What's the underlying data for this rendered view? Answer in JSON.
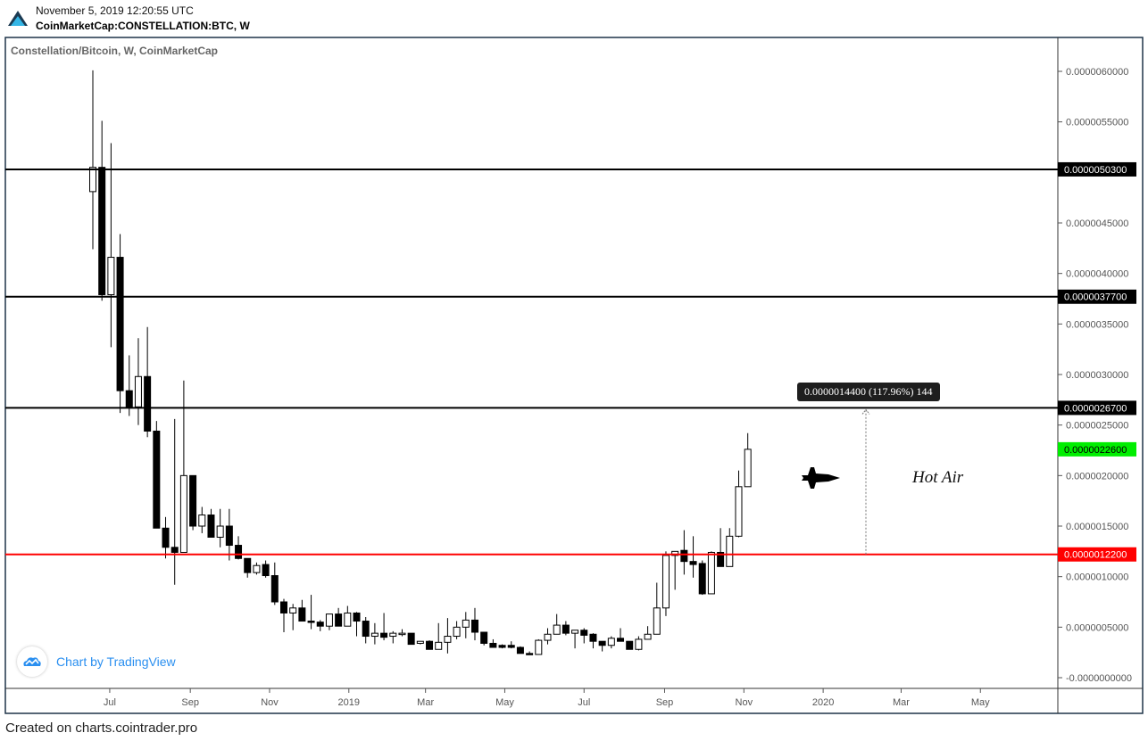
{
  "header": {
    "date": "November 5, 2019 12:20:55 UTC",
    "symbol": "CoinMarketCap:CONSTELLATION:BTC, W"
  },
  "footer": "Created on charts.cointrader.pro",
  "branding": {
    "label": "Chart by TradingView",
    "icon": "tradingview-cloud-icon",
    "color": "#2a8ff0"
  },
  "chart_data": {
    "type": "candlestick",
    "title": "Constellation/Bitcoin, W, CoinMarketCap",
    "interval": "W",
    "y_ticks": [
      "-0.0000000000",
      "0.0000005000",
      "0.0000010000",
      "0.0000015000",
      "0.0000020000",
      "0.0000025000",
      "0.0000030000",
      "0.0000035000",
      "0.0000040000",
      "0.0000045000",
      "0.0000055000",
      "0.0000060000"
    ],
    "y_tick_values": [
      0,
      5e-07,
      1e-06,
      1.5e-06,
      2e-06,
      2.5e-06,
      3e-06,
      3.5e-06,
      4e-06,
      4.5e-06,
      5.5e-06,
      6e-06
    ],
    "x_ticks": [
      {
        "label": "Jul",
        "date": "2018-07-01"
      },
      {
        "label": "Sep",
        "date": "2018-09-01"
      },
      {
        "label": "Nov",
        "date": "2018-11-01"
      },
      {
        "label": "2019",
        "date": "2019-01-01"
      },
      {
        "label": "Mar",
        "date": "2019-03-01"
      },
      {
        "label": "May",
        "date": "2019-05-01"
      },
      {
        "label": "Jul",
        "date": "2019-07-01"
      },
      {
        "label": "Sep",
        "date": "2019-09-01"
      },
      {
        "label": "Nov",
        "date": "2019-11-01"
      },
      {
        "label": "2020",
        "date": "2020-01-01"
      },
      {
        "label": "Mar",
        "date": "2020-03-01"
      },
      {
        "label": "May",
        "date": "2020-05-01"
      }
    ],
    "ylim": [
      -1e-07,
      6.4e-06
    ],
    "xlim": [
      "2016-04-15",
      "2020-07-15"
    ],
    "grid": false,
    "colors": {
      "up_fill": "#ffffff",
      "down_fill": "#000000",
      "wick": "#000000"
    },
    "candles_fields": [
      "date",
      "open",
      "high",
      "low",
      "close"
    ],
    "candles": [
      [
        "2018-06-18",
        4.81e-06,
        6.01e-06,
        4.24e-06,
        5.05e-06
      ],
      [
        "2018-06-25",
        5.05e-06,
        5.51e-06,
        3.73e-06,
        3.79e-06
      ],
      [
        "2018-07-02",
        3.79e-06,
        5.29e-06,
        3.27e-06,
        4.16e-06
      ],
      [
        "2018-07-09",
        4.16e-06,
        4.39e-06,
        2.62e-06,
        2.84e-06
      ],
      [
        "2018-07-16",
        2.84e-06,
        3.19e-06,
        2.59e-06,
        2.68e-06
      ],
      [
        "2018-07-23",
        2.68e-06,
        3.36e-06,
        2.5e-06,
        2.98e-06
      ],
      [
        "2018-07-30",
        2.98e-06,
        3.47e-06,
        2.38e-06,
        2.44e-06
      ],
      [
        "2018-08-06",
        2.44e-06,
        2.54e-06,
        1.48e-06,
        1.48e-06
      ],
      [
        "2018-08-13",
        1.48e-06,
        1.59e-06,
        1.18e-06,
        1.29e-06
      ],
      [
        "2018-08-20",
        1.29e-06,
        2.56e-06,
        9.2e-07,
        1.24e-06
      ],
      [
        "2018-08-27",
        1.24e-06,
        2.94e-06,
        1.24e-06,
        2e-06
      ],
      [
        "2018-09-03",
        2e-06,
        2e-06,
        1.46e-06,
        1.5e-06
      ],
      [
        "2018-09-10",
        1.5e-06,
        1.69e-06,
        1.43e-06,
        1.61e-06
      ],
      [
        "2018-09-17",
        1.61e-06,
        1.67e-06,
        1.39e-06,
        1.39e-06
      ],
      [
        "2018-09-24",
        1.39e-06,
        1.67e-06,
        1.29e-06,
        1.5e-06
      ],
      [
        "2018-10-01",
        1.5e-06,
        1.67e-06,
        1.16e-06,
        1.31e-06
      ],
      [
        "2018-10-08",
        1.31e-06,
        1.4e-06,
        1.17e-06,
        1.18e-06
      ],
      [
        "2018-10-15",
        1.18e-06,
        1.18e-06,
        9.9e-07,
        1.04e-06
      ],
      [
        "2018-10-22",
        1.04e-06,
        1.14e-06,
        1.02e-06,
        1.11e-06
      ],
      [
        "2018-10-29",
        1.12e-06,
        1.16e-06,
        9.9e-07,
        1.01e-06
      ],
      [
        "2018-11-05",
        1.01e-06,
        1.14e-06,
        7.2e-07,
        7.5e-07
      ],
      [
        "2018-11-12",
        7.5e-07,
        7.8e-07,
        4.5e-07,
        6.4e-07
      ],
      [
        "2018-11-19",
        6.4e-07,
        7.3e-07,
        4.7e-07,
        6.9e-07
      ],
      [
        "2018-11-26",
        6.9e-07,
        7.7e-07,
        5.6e-07,
        5.6e-07
      ],
      [
        "2018-12-03",
        5.6e-07,
        8.2e-07,
        4.8e-07,
        5.5e-07
      ],
      [
        "2018-12-10",
        5.5e-07,
        5.7e-07,
        4.6e-07,
        5.1e-07
      ],
      [
        "2018-12-17",
        5.1e-07,
        6.3e-07,
        4.7e-07,
        6.3e-07
      ],
      [
        "2018-12-24",
        6.3e-07,
        6.9e-07,
        5.1e-07,
        5.1e-07
      ],
      [
        "2018-12-31",
        5.1e-07,
        7.1e-07,
        5.1e-07,
        6.4e-07
      ],
      [
        "2019-01-07",
        6.4e-07,
        6.5e-07,
        4.1e-07,
        5.6e-07
      ],
      [
        "2019-01-14",
        5.6e-07,
        6e-07,
        3.4e-07,
        4.1e-07
      ],
      [
        "2019-01-21",
        4.1e-07,
        5.4e-07,
        3.3e-07,
        4.4e-07
      ],
      [
        "2019-01-28",
        4.4e-07,
        6.4e-07,
        3.7e-07,
        4e-07
      ],
      [
        "2019-02-04",
        4.1e-07,
        4.6e-07,
        3.4e-07,
        4.4e-07
      ],
      [
        "2019-02-11",
        4.4e-07,
        4.8e-07,
        4.1e-07,
        4.4e-07
      ],
      [
        "2019-02-18",
        4.4e-07,
        4.4e-07,
        3.3e-07,
        3.3e-07
      ],
      [
        "2019-02-25",
        3.4e-07,
        3.6e-07,
        3.3e-07,
        3.6e-07
      ],
      [
        "2019-03-04",
        3.6e-07,
        3.7e-07,
        2.8e-07,
        2.8e-07
      ],
      [
        "2019-03-11",
        2.8e-07,
        5.4e-07,
        2.8e-07,
        3.5e-07
      ],
      [
        "2019-03-18",
        3.5e-07,
        5.9e-07,
        2.4e-07,
        4.1e-07
      ],
      [
        "2019-03-25",
        4.1e-07,
        5.6e-07,
        3.8e-07,
        5e-07
      ],
      [
        "2019-04-01",
        5e-07,
        6.5e-07,
        3.9e-07,
        5.7e-07
      ],
      [
        "2019-04-08",
        5.7e-07,
        6.9e-07,
        3.7e-07,
        4.5e-07
      ],
      [
        "2019-04-15",
        4.5e-07,
        4.5e-07,
        3.2e-07,
        3.4e-07
      ],
      [
        "2019-04-22",
        3.4e-07,
        3.8e-07,
        3e-07,
        3e-07
      ],
      [
        "2019-04-29",
        3.2e-07,
        3.3e-07,
        2.9e-07,
        3e-07
      ],
      [
        "2019-05-06",
        3.2e-07,
        3.6e-07,
        2.9e-07,
        3e-07
      ],
      [
        "2019-05-13",
        3e-07,
        3.1e-07,
        2.4e-07,
        2.4e-07
      ],
      [
        "2019-05-20",
        2.4e-07,
        2.6e-07,
        2.3e-07,
        2.3e-07
      ],
      [
        "2019-05-27",
        2.3e-07,
        3.8e-07,
        2.3e-07,
        3.7e-07
      ],
      [
        "2019-06-03",
        3.7e-07,
        4.9e-07,
        3.3e-07,
        4.3e-07
      ],
      [
        "2019-06-10",
        4.3e-07,
        6.3e-07,
        4.3e-07,
        5.2e-07
      ],
      [
        "2019-06-17",
        5.2e-07,
        5.6e-07,
        4.2e-07,
        4.4e-07
      ],
      [
        "2019-06-24",
        4.4e-07,
        4.7e-07,
        2.9e-07,
        4.7e-07
      ],
      [
        "2019-07-01",
        4.7e-07,
        4.9e-07,
        3.4e-07,
        4.2e-07
      ],
      [
        "2019-07-08",
        4.3e-07,
        4.4e-07,
        2.9e-07,
        3.6e-07
      ],
      [
        "2019-07-15",
        3.6e-07,
        3.6e-07,
        2.6e-07,
        3.2e-07
      ],
      [
        "2019-07-22",
        3.2e-07,
        4.1e-07,
        2.9e-07,
        3.9e-07
      ],
      [
        "2019-07-29",
        3.9e-07,
        4.9e-07,
        3.6e-07,
        3.6e-07
      ],
      [
        "2019-08-05",
        3.6e-07,
        3.6e-07,
        2.8e-07,
        2.8e-07
      ],
      [
        "2019-08-12",
        2.8e-07,
        4.1e-07,
        2.7e-07,
        3.8e-07
      ],
      [
        "2019-08-19",
        3.8e-07,
        5.1e-07,
        3.8e-07,
        4.3e-07
      ],
      [
        "2019-08-26",
        4.3e-07,
        9.4e-07,
        4.3e-07,
        6.9e-07
      ],
      [
        "2019-09-02",
        6.9e-07,
        1.25e-06,
        6.1e-07,
        1.21e-06
      ],
      [
        "2019-09-09",
        1.21e-06,
        1.25e-06,
        8.7e-07,
        1.25e-06
      ],
      [
        "2019-09-16",
        1.26e-06,
        1.46e-06,
        1.02e-06,
        1.15e-06
      ],
      [
        "2019-09-23",
        1.15e-06,
        1.4e-06,
        9.9e-07,
        1.12e-06
      ],
      [
        "2019-09-30",
        1.13e-06,
        1.16e-06,
        8.2e-07,
        8.3e-07
      ],
      [
        "2019-10-07",
        8.3e-07,
        1.25e-06,
        8.3e-07,
        1.24e-06
      ],
      [
        "2019-10-14",
        1.24e-06,
        1.48e-06,
        1.1e-06,
        1.1e-06
      ],
      [
        "2019-10-21",
        1.1e-06,
        1.48e-06,
        1.1e-06,
        1.4e-06
      ],
      [
        "2019-10-28",
        1.4e-06,
        2.05e-06,
        1.39e-06,
        1.89e-06
      ],
      [
        "2019-11-04",
        1.89e-06,
        2.42e-06,
        1.89e-06,
        2.26e-06
      ]
    ],
    "horizontal_lines": [
      {
        "value": 5.03e-06,
        "label": "0.0000050300",
        "color": "#000000"
      },
      {
        "value": 3.77e-06,
        "label": "0.0000037700",
        "color": "#000000"
      },
      {
        "value": 2.67e-06,
        "label": "0.0000026700",
        "color": "#000000"
      },
      {
        "value": 1.22e-06,
        "label": "0.0000012200",
        "color": "#ff0000"
      }
    ],
    "last_price": {
      "value": 2.26e-06,
      "label": "0.0000022600",
      "color": "#00ee00"
    },
    "annotations": {
      "measure": {
        "from": 1.22e-06,
        "to": 2.67e-06,
        "label": "0.0000014400 (117.96%) 144"
      },
      "text": "Hot Air",
      "icon": "fighter-jet-icon"
    }
  }
}
